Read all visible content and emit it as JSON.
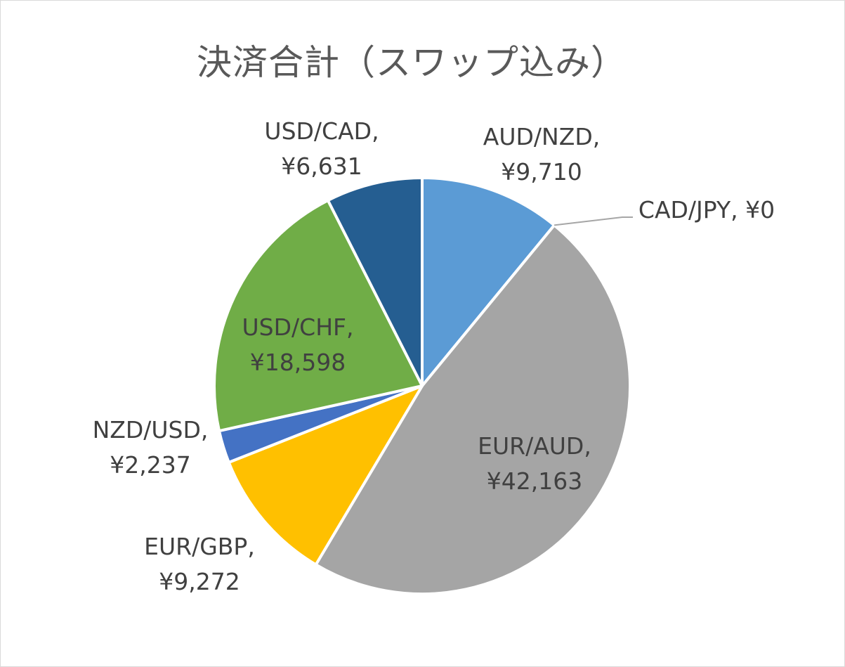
{
  "chart_data": {
    "type": "pie",
    "title": "決済合計（スワップ込み）",
    "start_angle_deg": 0,
    "direction": "clockwise",
    "slices": [
      {
        "name": "AUD/NZD",
        "value": 9710,
        "label_name": "AUD/NZD,",
        "label_value": "¥9,710",
        "color": "#5b9bd5"
      },
      {
        "name": "CAD/JPY",
        "value": 0,
        "label_name": "CAD/JPY, ¥0",
        "label_value": "",
        "color": "#ed7d31"
      },
      {
        "name": "EUR/AUD",
        "value": 42163,
        "label_name": "EUR/AUD,",
        "label_value": "¥42,163",
        "color": "#a5a5a5"
      },
      {
        "name": "EUR/GBP",
        "value": 9272,
        "label_name": "EUR/GBP,",
        "label_value": "¥9,272",
        "color": "#ffc000"
      },
      {
        "name": "NZD/USD",
        "value": 2237,
        "label_name": "NZD/USD,",
        "label_value": "¥2,237",
        "color": "#4472c4"
      },
      {
        "name": "USD/CHF",
        "value": 18598,
        "label_name": "USD/CHF,",
        "label_value": "¥18,598",
        "color": "#70ad47"
      },
      {
        "name": "USD/CAD",
        "value": 6631,
        "label_name": "USD/CAD,",
        "label_value": "¥6,631",
        "color": "#255e91"
      }
    ],
    "legend": "none",
    "label_color": "#404040",
    "title_color": "#595959",
    "slice_border_color": "#ffffff"
  }
}
